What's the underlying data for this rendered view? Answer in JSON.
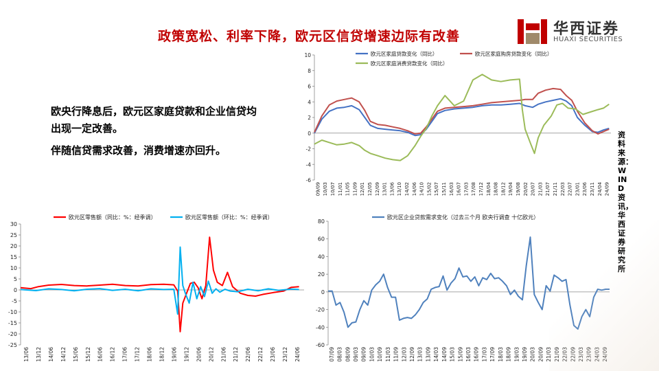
{
  "slide": {
    "title": "政策宽松、利率下降，欧元区信贷增速边际有改善",
    "brand": {
      "name": "华西证券",
      "english": "HUAXI SECURITIES"
    },
    "paragraphs": [
      "欧央行降息后，欧元区家庭贷款和企业信贷均出现一定改善。",
      "伴随信贷需求改善，消费增速亦回升。"
    ],
    "source": "资料来源：WIND资讯，华西证券研究所",
    "colors": {
      "title": "#c00000",
      "blue": "#4472c4",
      "red": "#c0504d",
      "green": "#9bbb59",
      "retail_red": "#ff0000",
      "retail_cyan": "#00b0f0"
    }
  },
  "chart_data": [
    {
      "id": "household-loans",
      "type": "line",
      "legend_position": "top",
      "ylim": [
        -6,
        10
      ],
      "yticks": [
        -6,
        -4,
        -2,
        0,
        2,
        4,
        6,
        8,
        10
      ],
      "xrange": [
        2009.0,
        2024.9
      ],
      "x_tick_labels": [
        "09/09",
        "10/03",
        "10/07",
        "11/01",
        "11/05",
        "11/09",
        "12/01",
        "12/05",
        "12/09",
        "13/01",
        "13/06",
        "13/10",
        "14/02",
        "14/06",
        "14/10",
        "15/02",
        "15/07",
        "15/11",
        "16/03",
        "16/07",
        "17/03",
        "17/08",
        "17/12",
        "18/04",
        "18/08",
        "18/12",
        "19/04",
        "19/08",
        "20/02",
        "20/07",
        "21/03",
        "21/07",
        "21/11",
        "22/03",
        "22/07",
        "23/01",
        "23/06",
        "23/11",
        "24/04",
        "24/09"
      ],
      "series": [
        {
          "name": "欧元区家庭贷款变化（同比）",
          "color": "#4472c4",
          "x": [
            2009.0,
            2009.4,
            2009.8,
            2010.2,
            2010.6,
            2011.0,
            2011.4,
            2011.7,
            2012.0,
            2012.4,
            2012.8,
            2013.2,
            2013.6,
            2014.0,
            2014.4,
            2014.7,
            2015.0,
            2015.3,
            2015.6,
            2016.0,
            2016.5,
            2017.0,
            2017.5,
            2018.0,
            2018.5,
            2019.0,
            2019.5,
            2020.0,
            2020.3,
            2020.7,
            2021.0,
            2021.4,
            2021.8,
            2022.2,
            2022.5,
            2022.8,
            2023.1,
            2023.5,
            2023.9,
            2024.2,
            2024.5,
            2024.8
          ],
          "y": [
            0.0,
            1.8,
            2.8,
            3.2,
            3.3,
            3.5,
            3.0,
            2.0,
            1.0,
            0.6,
            0.5,
            0.4,
            0.3,
            0.1,
            -0.3,
            -0.2,
            0.5,
            1.5,
            2.5,
            2.9,
            3.1,
            3.2,
            3.3,
            3.5,
            3.6,
            3.6,
            3.7,
            3.8,
            3.5,
            3.3,
            3.7,
            4.0,
            4.2,
            4.4,
            4.1,
            3.5,
            2.0,
            1.0,
            0.2,
            0.1,
            0.4,
            0.6
          ]
        },
        {
          "name": "欧元区家庭购房贷款变化（同比）",
          "color": "#c0504d",
          "x": [
            2009.0,
            2009.4,
            2009.8,
            2010.2,
            2010.6,
            2011.0,
            2011.4,
            2011.7,
            2012.0,
            2012.4,
            2012.8,
            2013.2,
            2013.6,
            2014.0,
            2014.4,
            2014.7,
            2015.0,
            2015.3,
            2015.6,
            2016.0,
            2016.5,
            2017.0,
            2017.5,
            2018.0,
            2018.5,
            2019.0,
            2019.5,
            2020.0,
            2020.3,
            2020.7,
            2021.0,
            2021.4,
            2021.8,
            2022.2,
            2022.5,
            2022.8,
            2023.1,
            2023.5,
            2023.9,
            2024.2,
            2024.5,
            2024.8
          ],
          "y": [
            0.1,
            2.2,
            3.6,
            4.1,
            4.3,
            4.5,
            4.0,
            2.9,
            1.5,
            1.1,
            1.0,
            0.8,
            0.6,
            0.3,
            -0.1,
            0.0,
            0.8,
            1.8,
            2.8,
            3.2,
            3.3,
            3.4,
            3.5,
            3.7,
            3.9,
            4.0,
            4.1,
            4.2,
            4.3,
            4.3,
            5.1,
            5.5,
            5.7,
            5.6,
            4.8,
            4.2,
            2.8,
            1.3,
            0.3,
            -0.1,
            0.2,
            0.5
          ]
        },
        {
          "name": "欧元区家庭消费贷款变化（同比）",
          "color": "#9bbb59",
          "x": [
            2009.0,
            2009.4,
            2009.8,
            2010.2,
            2010.6,
            2011.0,
            2011.4,
            2011.7,
            2012.0,
            2012.4,
            2012.8,
            2013.2,
            2013.6,
            2014.0,
            2014.4,
            2014.7,
            2015.0,
            2015.3,
            2015.6,
            2016.0,
            2016.5,
            2017.0,
            2017.5,
            2018.0,
            2018.5,
            2019.0,
            2019.5,
            2020.0,
            2020.15,
            2020.3,
            2020.6,
            2020.8,
            2021.0,
            2021.3,
            2021.7,
            2022.0,
            2022.3,
            2022.6,
            2023.0,
            2023.4,
            2023.8,
            2024.2,
            2024.5,
            2024.8
          ],
          "y": [
            -1.4,
            -0.9,
            -1.2,
            -1.5,
            -1.4,
            -1.2,
            -1.6,
            -2.2,
            -2.6,
            -2.9,
            -3.2,
            -3.4,
            -3.5,
            -2.9,
            -1.6,
            -0.4,
            0.6,
            2.2,
            3.5,
            4.8,
            3.5,
            4.1,
            6.8,
            7.5,
            6.8,
            6.6,
            6.8,
            6.9,
            3.0,
            0.5,
            -1.4,
            -2.6,
            -0.6,
            1.0,
            2.2,
            3.6,
            3.8,
            3.2,
            3.1,
            2.4,
            2.7,
            3.0,
            3.2,
            3.7
          ]
        }
      ]
    },
    {
      "id": "retail-sales",
      "type": "line",
      "legend_position": "top",
      "ylim": [
        -25,
        30
      ],
      "yticks": [
        -25,
        -20,
        -15,
        -10,
        -5,
        0,
        5,
        10,
        15,
        20,
        25,
        30
      ],
      "xrange": [
        2013.9,
        2025.0
      ],
      "x_tick_labels": [
        "13/06",
        "13/12",
        "14/06",
        "14/12",
        "15/06",
        "15/12",
        "16/06",
        "16/12",
        "17/06",
        "17/12",
        "18/06",
        "18/12",
        "19/06",
        "19/12",
        "20/06",
        "20/12",
        "21/06",
        "21/12",
        "22/06",
        "22/12",
        "23/06",
        "23/12",
        "24/06"
      ],
      "series": [
        {
          "name": "欧元区零售额（同比：%：经季调）",
          "color": "#ff0000",
          "x": [
            2013.9,
            2014.3,
            2014.6,
            2015.0,
            2015.5,
            2016.0,
            2016.5,
            2017.0,
            2017.5,
            2018.0,
            2018.5,
            2019.0,
            2019.5,
            2019.9,
            2020.05,
            2020.15,
            2020.25,
            2020.4,
            2020.55,
            2020.7,
            2020.85,
            2021.0,
            2021.15,
            2021.3,
            2021.45,
            2021.6,
            2021.8,
            2022.0,
            2022.2,
            2022.5,
            2022.8,
            2023.1,
            2023.4,
            2023.8,
            2024.2,
            2024.5,
            2024.8
          ],
          "y": [
            1.0,
            0.6,
            1.5,
            2.2,
            2.5,
            2.0,
            1.8,
            2.2,
            2.6,
            2.0,
            1.8,
            2.4,
            2.6,
            2.3,
            -0.5,
            -19.0,
            -6.0,
            -1.5,
            3.0,
            3.5,
            1.0,
            -4.0,
            2.0,
            24.0,
            9.0,
            3.5,
            2.0,
            8.0,
            1.5,
            -1.5,
            -2.5,
            -2.8,
            -2.0,
            -1.2,
            -0.5,
            1.2,
            1.5
          ]
        },
        {
          "name": "欧元区零售额（环比：%：经季调）",
          "color": "#00b0f0",
          "x": [
            2013.9,
            2014.5,
            2015.0,
            2015.5,
            2016.0,
            2016.5,
            2017.0,
            2017.5,
            2018.0,
            2018.5,
            2019.0,
            2019.5,
            2019.9,
            2020.05,
            2020.15,
            2020.25,
            2020.35,
            2020.5,
            2020.65,
            2020.8,
            2020.95,
            2021.1,
            2021.25,
            2021.4,
            2021.55,
            2021.7,
            2021.9,
            2022.1,
            2022.4,
            2022.8,
            2023.2,
            2023.6,
            2024.0,
            2024.5,
            2024.8
          ],
          "y": [
            0.2,
            -0.3,
            0.5,
            0.2,
            -0.4,
            0.3,
            0.6,
            -0.2,
            0.3,
            -0.4,
            0.5,
            0.2,
            0.3,
            -11.0,
            19.5,
            2.0,
            -1.5,
            -6.0,
            3.5,
            -4.0,
            1.5,
            -3.0,
            4.0,
            -1.5,
            0.5,
            -1.0,
            0.3,
            -0.5,
            -0.8,
            0.3,
            -0.4,
            0.5,
            -0.2,
            0.4,
            0.2
          ]
        }
      ]
    },
    {
      "id": "corporate-credit-demand",
      "type": "line",
      "legend_position": "top",
      "ylim": [
        -60,
        80
      ],
      "yticks": [
        -60,
        -40,
        -20,
        0,
        20,
        40,
        60,
        80
      ],
      "xrange": [
        2007.0,
        2024.75
      ],
      "x_tick_labels": [
        "07/09",
        "08/03",
        "08/09",
        "09/03",
        "09/09",
        "10/03",
        "10/09",
        "11/03",
        "11/09",
        "12/03",
        "12/09",
        "13/03",
        "13/09",
        "14/03",
        "14/09",
        "15/03",
        "15/09",
        "16/03",
        "16/09",
        "17/03",
        "17/09",
        "18/03",
        "18/09",
        "19/03",
        "19/09",
        "20/03",
        "20/09",
        "21/03",
        "21/09",
        "22/03",
        "22/09",
        "23/03",
        "23/09",
        "24/03",
        "24/09"
      ],
      "series": [
        {
          "name": "欧元区企业贷款需求变化（过去三个月 欧央行调查 十亿欧元）",
          "color": "#4f81bd",
          "x": [
            2007.0,
            2007.25,
            2007.5,
            2007.75,
            2008.0,
            2008.25,
            2008.5,
            2008.75,
            2009.0,
            2009.25,
            2009.5,
            2009.75,
            2010.0,
            2010.25,
            2010.5,
            2010.75,
            2011.0,
            2011.25,
            2011.5,
            2011.75,
            2012.0,
            2012.25,
            2012.5,
            2012.75,
            2013.0,
            2013.25,
            2013.5,
            2013.75,
            2014.0,
            2014.25,
            2014.5,
            2014.75,
            2015.0,
            2015.25,
            2015.5,
            2015.75,
            2016.0,
            2016.25,
            2016.5,
            2016.75,
            2017.0,
            2017.25,
            2017.5,
            2017.75,
            2018.0,
            2018.25,
            2018.5,
            2018.75,
            2019.0,
            2019.25,
            2019.5,
            2019.75,
            2020.0,
            2020.25,
            2020.5,
            2020.75,
            2021.0,
            2021.25,
            2021.5,
            2021.75,
            2022.0,
            2022.25,
            2022.5,
            2022.75,
            2023.0,
            2023.25,
            2023.5,
            2023.75,
            2024.0,
            2024.25,
            2024.5,
            2024.75
          ],
          "y": [
            1,
            1,
            -15,
            -12,
            -23,
            -40,
            -35,
            -34,
            -20,
            -10,
            -15,
            2,
            8,
            12,
            20,
            5,
            -6,
            -6,
            -32,
            -30,
            -29,
            -30,
            -26,
            -20,
            -12,
            -8,
            3,
            5,
            6,
            18,
            2,
            10,
            15,
            27,
            17,
            18,
            12,
            17,
            7,
            16,
            14,
            21,
            15,
            16,
            12,
            7,
            -3,
            2,
            -5,
            -9,
            30,
            62,
            -3,
            -12,
            -20,
            7,
            1,
            19,
            16,
            12,
            14,
            -15,
            -38,
            -42,
            -28,
            -20,
            -28,
            -6,
            3,
            2,
            3,
            3
          ]
        }
      ]
    }
  ]
}
